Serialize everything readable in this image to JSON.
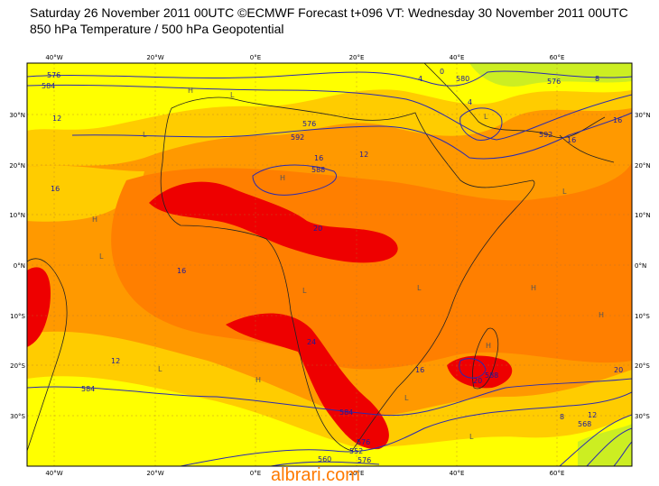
{
  "header": {
    "line1": "Saturday 26 November 2011 00UTC ©ECMWF Forecast t+096 VT: Wednesday 30 November 2011 00UTC",
    "line2": "850 hPa Temperature / 500 hPa Geopotential"
  },
  "axes": {
    "lon_labels": [
      "40°W",
      "20°W",
      "0°E",
      "20°E",
      "40°E",
      "60°E"
    ],
    "lat_labels": [
      "30°N",
      "20°N",
      "10°N",
      "0°N",
      "10°S",
      "20°S",
      "30°S"
    ]
  },
  "contours": {
    "geopotential": [
      "576",
      "584",
      "588",
      "592",
      "576",
      "592",
      "580",
      "576",
      "568",
      "584",
      "576",
      "560",
      "552",
      "588",
      "576",
      "584"
    ],
    "temperature": [
      "12",
      "16",
      "16",
      "20",
      "16",
      "12",
      "24",
      "20",
      "16",
      "16",
      "16",
      "12",
      "20",
      "8",
      "0",
      "4",
      "4",
      "8",
      "12"
    ]
  },
  "pressure_centers": {
    "highs": [
      "H",
      "H",
      "H",
      "H",
      "H",
      "H",
      "H"
    ],
    "lows": [
      "L",
      "L",
      "L",
      "L",
      "L",
      "L",
      "L",
      "L",
      "L",
      "L"
    ]
  },
  "colors": {
    "yellow": "#ffff00",
    "light_orange": "#ffcc00",
    "orange": "#ff9900",
    "dark_orange": "#ff7f00",
    "red": "#ee0000",
    "green": "#bfe000",
    "contour_blue": "#2a2ab0"
  },
  "watermark": "albrari.com"
}
